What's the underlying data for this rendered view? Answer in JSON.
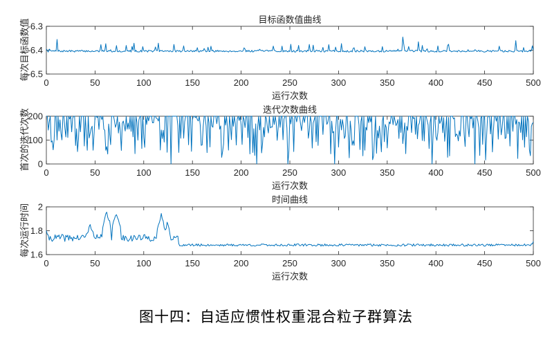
{
  "caption": "图十四：自适应惯性权重混合粒子群算法",
  "chart_data": [
    {
      "type": "line",
      "title": "目标函数值曲线",
      "xlabel": "运行次数",
      "ylabel": "每次目标函数值",
      "xlim": [
        0,
        500
      ],
      "ylim": [
        -6.5,
        -6.3
      ],
      "xticks": [
        0,
        50,
        100,
        150,
        200,
        250,
        300,
        350,
        400,
        450,
        500
      ],
      "yticks": [
        -6.3,
        -6.4,
        -6.5
      ],
      "ytick_labels": [
        "-6.3",
        "-6.4",
        "-6.5"
      ],
      "series_color": "#0072BD",
      "series": {
        "kind": "noisy",
        "n": 500,
        "seed": 7,
        "baseline": -6.404,
        "noise": 0.004,
        "spike_prob": 0.09,
        "spike_min": 0.008,
        "spike_max": 0.03,
        "spike_sign": 1,
        "fixed_points": [
          [
            0,
            -6.395
          ],
          [
            11,
            -6.355
          ],
          [
            366,
            -6.345
          ],
          [
            382,
            -6.365
          ],
          [
            482,
            -6.36
          ],
          [
            500,
            -6.4
          ]
        ]
      }
    },
    {
      "type": "line",
      "title": "迭代次数曲线",
      "xlabel": "运行次数",
      "ylabel": "首次的迭代次数",
      "xlim": [
        0,
        500
      ],
      "ylim": [
        0,
        200
      ],
      "xticks": [
        0,
        50,
        100,
        150,
        200,
        250,
        300,
        350,
        400,
        450,
        500
      ],
      "yticks": [
        0,
        100,
        200
      ],
      "ytick_labels": [
        "0",
        "100",
        "200"
      ],
      "series_color": "#0072BD",
      "series": {
        "kind": "iter",
        "n": 500,
        "seed": 23,
        "cap": 200,
        "cap_prob": 0.4,
        "low_min": 5,
        "low_max": 195,
        "fixed_points": [
          [
            0,
            200
          ],
          [
            128,
            0
          ],
          [
            216,
            0
          ],
          [
            248,
            0
          ],
          [
            296,
            0
          ],
          [
            396,
            0
          ],
          [
            440,
            0
          ]
        ]
      }
    },
    {
      "type": "line",
      "title": "时间曲线",
      "xlabel": "运行次数",
      "ylabel": "每次运行时间",
      "xlim": [
        0,
        500
      ],
      "ylim": [
        1.6,
        2.0
      ],
      "xticks": [
        0,
        50,
        100,
        150,
        200,
        250,
        300,
        350,
        400,
        450,
        500
      ],
      "yticks": [
        1.6,
        1.8,
        2.0
      ],
      "ytick_labels": [
        "1.6",
        "1.8",
        "2"
      ],
      "series_color": "#0072BD",
      "series": {
        "kind": "time",
        "n": 500,
        "seed": 41,
        "early_end": 135,
        "early_base": 1.74,
        "early_noise": 0.03,
        "late_base": 1.68,
        "late_noise": 0.01,
        "bumps": [
          [
            45,
            1.84,
            6
          ],
          [
            62,
            1.96,
            4
          ],
          [
            72,
            1.95,
            4
          ],
          [
            118,
            1.93,
            4
          ],
          [
            124,
            1.86,
            4
          ]
        ],
        "fixed_points": [
          [
            0,
            1.8
          ],
          [
            500,
            1.71
          ]
        ]
      }
    }
  ]
}
